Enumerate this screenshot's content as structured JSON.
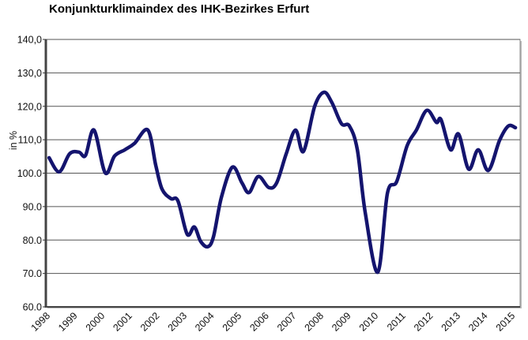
{
  "chart_data": {
    "type": "line",
    "title": "Konjunkturklimaindex des IHK-Bezirkes Erfurt",
    "xlabel": "",
    "ylabel": "in %",
    "ylim": [
      60,
      140
    ],
    "xlim": [
      1998,
      2015
    ],
    "grid": true,
    "y_ticks": [
      "140,0",
      "130,0",
      "120,0",
      "110,0",
      "100.0",
      "90.0",
      "80.0",
      "70.0",
      "60.0"
    ],
    "y_tick_values": [
      140,
      130,
      120,
      110,
      100,
      90,
      80,
      70,
      60
    ],
    "x_ticks": [
      "1998",
      "1999",
      "2000",
      "2001",
      "2002",
      "2003",
      "2004",
      "2005",
      "2006",
      "2007",
      "2008",
      "2009",
      "2010",
      "2011",
      "2012",
      "2013",
      "2014",
      "2015"
    ],
    "line_color": "#14146e",
    "series": [
      {
        "x": [
          1998.12,
          1998.49,
          1998.87,
          1999.21,
          1999.45,
          1999.76,
          2000.17,
          2000.51,
          2000.89,
          2001.24,
          2001.73,
          2002.02,
          2002.25,
          2002.57,
          2002.83,
          2003.17,
          2003.43,
          2003.66,
          2003.92,
          2004.13,
          2004.42,
          2004.82,
          2005.17,
          2005.43,
          2005.77,
          2006.15,
          2006.44,
          2006.79,
          2007.13,
          2007.42,
          2007.83,
          2008.17,
          2008.46,
          2008.81,
          2009.1,
          2009.39,
          2009.68,
          2010.14,
          2010.49,
          2010.83,
          2011.21,
          2011.55,
          2011.93,
          2012.28,
          2012.45,
          2012.8,
          2013.09,
          2013.46,
          2013.81,
          2014.18,
          2014.59,
          2014.91,
          2015.17
        ],
        "y": [
          104.6,
          100.4,
          105.8,
          106.3,
          105.3,
          112.9,
          100.1,
          105.1,
          107.0,
          108.9,
          112.9,
          102.3,
          95.2,
          92.4,
          91.7,
          81.7,
          83.9,
          79.6,
          78.0,
          81.0,
          92.8,
          101.8,
          97.1,
          94.2,
          99.0,
          95.7,
          97.1,
          105.8,
          112.9,
          106.5,
          120.0,
          124.2,
          121.1,
          114.8,
          114.1,
          107.0,
          88.1,
          70.4,
          94.0,
          97.5,
          108.2,
          112.9,
          118.8,
          115.2,
          116.0,
          107.0,
          111.7,
          101.2,
          107.0,
          100.8,
          109.8,
          114.1,
          113.6
        ]
      }
    ]
  }
}
